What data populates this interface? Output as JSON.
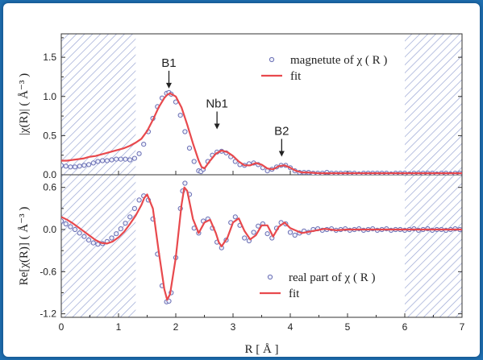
{
  "chart_data": [
    {
      "panel": "top",
      "type": "line",
      "ylabel": "|χ(R)| ( Å⁻³ )",
      "xlim": [
        0,
        7
      ],
      "ylim": [
        0,
        1.8
      ],
      "yticks": [
        0.0,
        0.5,
        1.0,
        1.5
      ],
      "ytick_labels": [
        "0.0",
        "0.5",
        "1.0",
        "1.5"
      ],
      "legend_position": "top-right",
      "shaded_x_ranges": [
        [
          0,
          1.3
        ],
        [
          6,
          7
        ]
      ],
      "series": [
        {
          "name": "magnetute of χ ( R )",
          "style": "markers",
          "color": "#6a6fb4",
          "x": [
            0.0,
            0.08,
            0.16,
            0.24,
            0.32,
            0.4,
            0.48,
            0.56,
            0.64,
            0.72,
            0.8,
            0.88,
            0.96,
            1.04,
            1.12,
            1.2,
            1.28,
            1.36,
            1.44,
            1.52,
            1.6,
            1.68,
            1.76,
            1.84,
            1.88,
            1.92,
            2.0,
            2.08,
            2.16,
            2.24,
            2.32,
            2.4,
            2.44,
            2.48,
            2.56,
            2.64,
            2.72,
            2.8,
            2.88,
            2.96,
            3.04,
            3.12,
            3.2,
            3.28,
            3.36,
            3.44,
            3.52,
            3.6,
            3.68,
            3.76,
            3.84,
            3.92,
            4.0,
            4.08,
            4.16,
            4.24,
            4.32,
            4.4,
            4.48,
            4.56,
            4.64,
            4.72,
            4.8,
            4.88,
            4.96,
            5.04,
            5.12,
            5.2,
            5.28,
            5.36,
            5.44,
            5.52,
            5.6,
            5.68,
            5.76,
            5.84,
            5.92,
            6.0,
            6.08,
            6.16,
            6.24,
            6.32,
            6.4,
            6.48,
            6.56,
            6.64,
            6.72,
            6.8,
            6.88,
            6.96
          ],
          "y": [
            0.12,
            0.11,
            0.1,
            0.1,
            0.11,
            0.12,
            0.13,
            0.15,
            0.17,
            0.18,
            0.18,
            0.19,
            0.2,
            0.2,
            0.2,
            0.19,
            0.21,
            0.27,
            0.39,
            0.55,
            0.72,
            0.87,
            0.98,
            1.04,
            1.05,
            1.03,
            0.93,
            0.76,
            0.55,
            0.34,
            0.17,
            0.05,
            0.04,
            0.07,
            0.17,
            0.25,
            0.29,
            0.3,
            0.28,
            0.23,
            0.17,
            0.13,
            0.12,
            0.14,
            0.15,
            0.13,
            0.09,
            0.05,
            0.07,
            0.1,
            0.12,
            0.12,
            0.09,
            0.05,
            0.03,
            0.03,
            0.03,
            0.02,
            0.02,
            0.02,
            0.03,
            0.02,
            0.02,
            0.02,
            0.02,
            0.02,
            0.02,
            0.01,
            0.02,
            0.02,
            0.02,
            0.02,
            0.02,
            0.02,
            0.01,
            0.02,
            0.02,
            0.02,
            0.01,
            0.02,
            0.02,
            0.02,
            0.02,
            0.02,
            0.01,
            0.02,
            0.02,
            0.01,
            0.02,
            0.02
          ]
        },
        {
          "name": "fit",
          "style": "line",
          "color": "#e8494d",
          "x": [
            0.0,
            0.1,
            0.2,
            0.3,
            0.4,
            0.5,
            0.6,
            0.7,
            0.8,
            0.9,
            1.0,
            1.1,
            1.2,
            1.3,
            1.4,
            1.5,
            1.6,
            1.7,
            1.8,
            1.85,
            1.9,
            2.0,
            2.1,
            2.2,
            2.3,
            2.4,
            2.45,
            2.5,
            2.6,
            2.7,
            2.8,
            2.9,
            3.0,
            3.1,
            3.2,
            3.3,
            3.4,
            3.5,
            3.6,
            3.7,
            3.8,
            3.9,
            4.0,
            4.1,
            4.2,
            4.3,
            4.5,
            4.7,
            5.0,
            5.3,
            5.6,
            6.0,
            6.5,
            7.0
          ],
          "y": [
            0.18,
            0.18,
            0.19,
            0.2,
            0.21,
            0.23,
            0.24,
            0.26,
            0.28,
            0.3,
            0.32,
            0.34,
            0.37,
            0.41,
            0.46,
            0.56,
            0.7,
            0.86,
            0.98,
            1.02,
            1.04,
            1.0,
            0.86,
            0.64,
            0.4,
            0.18,
            0.1,
            0.08,
            0.18,
            0.27,
            0.31,
            0.29,
            0.24,
            0.17,
            0.12,
            0.12,
            0.15,
            0.13,
            0.08,
            0.07,
            0.11,
            0.12,
            0.09,
            0.05,
            0.03,
            0.03,
            0.02,
            0.02,
            0.02,
            0.02,
            0.02,
            0.02,
            0.02,
            0.02
          ]
        }
      ],
      "annotations": [
        {
          "text": "B1",
          "x": 1.88,
          "y_arrow_tip": 1.05
        },
        {
          "text": "Nb1",
          "x": 2.72,
          "y_arrow_tip": 0.53
        },
        {
          "text": "B2",
          "x": 3.85,
          "y_arrow_tip": 0.18
        }
      ]
    },
    {
      "panel": "bottom",
      "type": "line",
      "ylabel": "Re[χ(R)] ( Å⁻³ )",
      "xlabel": "R [ Å ]",
      "xlim": [
        0,
        7
      ],
      "ylim": [
        -1.25,
        0.78
      ],
      "xticks": [
        0,
        1,
        2,
        3,
        4,
        5,
        6,
        7
      ],
      "xtick_labels": [
        "0",
        "1",
        "2",
        "3",
        "4",
        "5",
        "6",
        "7"
      ],
      "yticks": [
        -1.2,
        -0.6,
        0.0,
        0.6
      ],
      "ytick_labels": [
        "-1.2",
        "-0.6",
        "0.0",
        "0.6"
      ],
      "legend_position": "bottom-right",
      "shaded_x_ranges": [
        [
          0,
          1.3
        ],
        [
          6,
          7
        ]
      ],
      "series": [
        {
          "name": "real part of χ ( R )",
          "style": "markers",
          "color": "#6a6fb4",
          "x": [
            0.0,
            0.08,
            0.16,
            0.24,
            0.32,
            0.4,
            0.48,
            0.56,
            0.64,
            0.72,
            0.8,
            0.88,
            0.96,
            1.04,
            1.12,
            1.2,
            1.28,
            1.36,
            1.44,
            1.52,
            1.6,
            1.68,
            1.76,
            1.84,
            1.88,
            1.92,
            2.0,
            2.08,
            2.12,
            2.16,
            2.24,
            2.32,
            2.4,
            2.48,
            2.56,
            2.64,
            2.72,
            2.8,
            2.88,
            2.96,
            3.04,
            3.12,
            3.2,
            3.28,
            3.36,
            3.44,
            3.52,
            3.6,
            3.68,
            3.76,
            3.84,
            3.92,
            4.0,
            4.08,
            4.16,
            4.24,
            4.32,
            4.4,
            4.48,
            4.56,
            4.64,
            4.72,
            4.8,
            4.88,
            4.96,
            5.04,
            5.12,
            5.2,
            5.28,
            5.36,
            5.44,
            5.52,
            5.6,
            5.68,
            5.76,
            5.84,
            5.92,
            6.0,
            6.08,
            6.16,
            6.24,
            6.32,
            6.4,
            6.48,
            6.56,
            6.64,
            6.72,
            6.8,
            6.88,
            6.96
          ],
          "y": [
            0.12,
            0.08,
            0.04,
            0.0,
            -0.05,
            -0.1,
            -0.15,
            -0.19,
            -0.21,
            -0.2,
            -0.17,
            -0.12,
            -0.06,
            0.01,
            0.09,
            0.18,
            0.3,
            0.42,
            0.48,
            0.42,
            0.15,
            -0.35,
            -0.8,
            -1.03,
            -1.02,
            -0.9,
            -0.4,
            0.3,
            0.55,
            0.66,
            0.5,
            0.02,
            -0.05,
            0.12,
            0.15,
            0.02,
            -0.18,
            -0.26,
            -0.15,
            0.1,
            0.18,
            0.06,
            -0.12,
            -0.16,
            -0.04,
            0.05,
            0.08,
            -0.06,
            -0.12,
            0.02,
            0.1,
            0.08,
            -0.04,
            -0.08,
            -0.05,
            -0.02,
            -0.04,
            0.0,
            0.01,
            -0.01,
            0.0,
            0.01,
            -0.01,
            0.0,
            0.01,
            -0.01,
            0.0,
            0.01,
            -0.01,
            0.0,
            0.01,
            -0.01,
            0.0,
            0.01,
            -0.01,
            0.0,
            0.0,
            -0.01,
            0.0,
            0.01,
            -0.01,
            0.0,
            0.01,
            -0.01,
            0.0,
            0.0,
            -0.01,
            0.0,
            0.01,
            0.0
          ]
        },
        {
          "name": "fit",
          "style": "line",
          "color": "#e8494d",
          "x": [
            0.0,
            0.1,
            0.2,
            0.3,
            0.4,
            0.5,
            0.6,
            0.7,
            0.8,
            0.9,
            1.0,
            1.1,
            1.2,
            1.3,
            1.4,
            1.45,
            1.5,
            1.6,
            1.7,
            1.8,
            1.85,
            1.9,
            2.0,
            2.1,
            2.15,
            2.2,
            2.3,
            2.4,
            2.5,
            2.6,
            2.7,
            2.75,
            2.8,
            2.9,
            3.0,
            3.1,
            3.2,
            3.3,
            3.4,
            3.5,
            3.6,
            3.7,
            3.8,
            3.9,
            4.0,
            4.2,
            4.4,
            4.6,
            4.8,
            5.0,
            5.3,
            5.6,
            6.0,
            6.5,
            7.0
          ],
          "y": [
            0.18,
            0.14,
            0.09,
            0.03,
            -0.03,
            -0.09,
            -0.15,
            -0.19,
            -0.2,
            -0.17,
            -0.11,
            -0.03,
            0.08,
            0.2,
            0.35,
            0.45,
            0.5,
            0.3,
            -0.3,
            -0.85,
            -1.0,
            -0.92,
            -0.4,
            0.35,
            0.6,
            0.55,
            0.15,
            -0.05,
            0.1,
            0.14,
            -0.05,
            -0.18,
            -0.24,
            -0.12,
            0.1,
            0.16,
            -0.02,
            -0.14,
            -0.08,
            0.06,
            0.06,
            -0.1,
            0.04,
            0.1,
            0.02,
            -0.05,
            -0.02,
            0.01,
            -0.01,
            0.0,
            0.0,
            0.0,
            0.0,
            0.0,
            0.0
          ]
        }
      ]
    }
  ]
}
